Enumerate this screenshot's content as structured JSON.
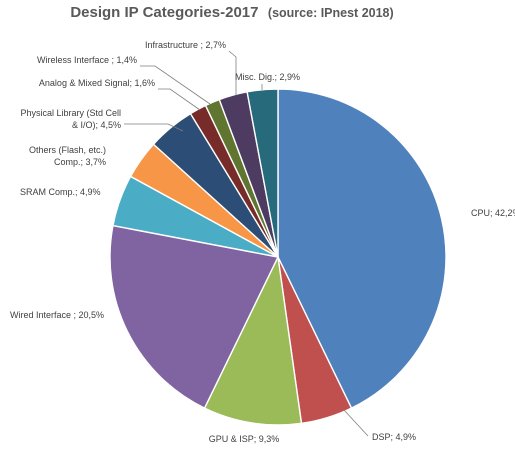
{
  "chart_data": {
    "type": "pie",
    "title": "Design IP Categories-2017",
    "subtitle": "(source: IPnest 2018)",
    "slices": [
      {
        "label": "CPU",
        "value": 42.2,
        "value_label": "42,2%",
        "color": "#4f81bd"
      },
      {
        "label": "DSP",
        "value": 4.9,
        "value_label": "4,9%",
        "color": "#c0504d"
      },
      {
        "label": "GPU & ISP",
        "value": 9.3,
        "value_label": "9,3%",
        "color": "#9bbb59"
      },
      {
        "label": "Wired Interface ",
        "value": 20.5,
        "value_label": "20,5%",
        "color": "#8064a2"
      },
      {
        "label": "SRAM Comp.",
        "value": 4.9,
        "value_label": "4,9%",
        "color": "#4bacc6"
      },
      {
        "label": "Others  (Flash, etc.) Comp.",
        "value": 3.7,
        "value_label": "3,7%",
        "color": "#f79646"
      },
      {
        "label": "Physical Library (Std Cell & I/O)",
        "value": 4.5,
        "value_label": "4,5%",
        "color": "#2c4d75"
      },
      {
        "label": "Analog & Mixed Signal",
        "value": 1.6,
        "value_label": "1,6%",
        "color": "#772c2a"
      },
      {
        "label": "Wireless Interface ",
        "value": 1.4,
        "value_label": "1,4%",
        "color": "#5f7530"
      },
      {
        "label": "Infrastructure ",
        "value": 2.7,
        "value_label": "2,7%",
        "color": "#4d3b62"
      },
      {
        "label": "Misc. Dig.",
        "value": 2.9,
        "value_label": "2,9%",
        "color": "#276a7c"
      }
    ],
    "start_angle_deg": 0,
    "direction": "clockwise",
    "label_separator": "; ",
    "legend": "none"
  }
}
